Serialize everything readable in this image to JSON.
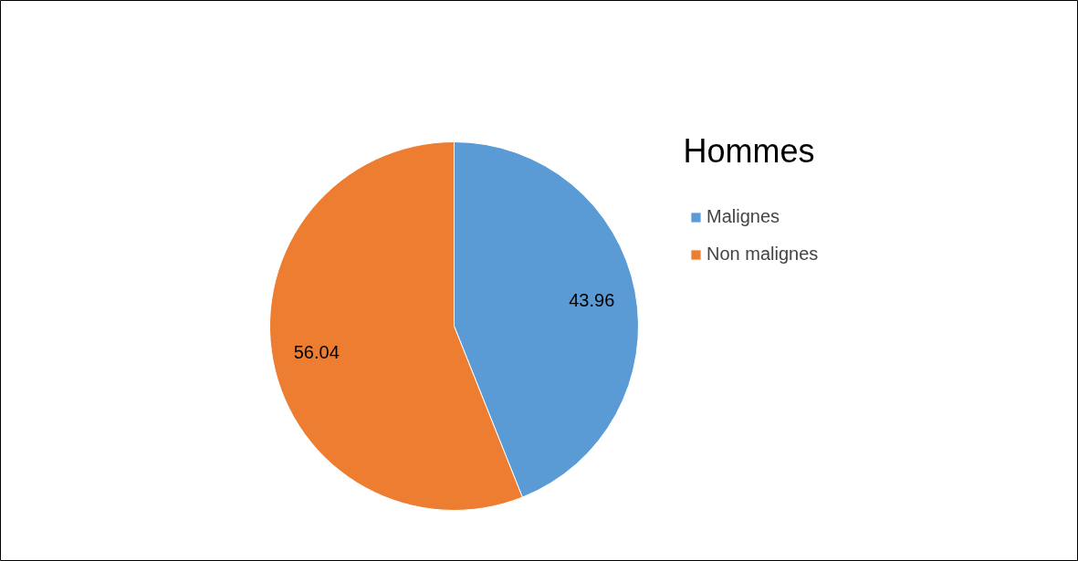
{
  "chart_data": {
    "type": "pie",
    "title": "Hommes",
    "categories": [
      "Malignes",
      "Non malignes"
    ],
    "values": [
      43.96,
      56.04
    ],
    "colors": [
      "#5b9bd5",
      "#ed7d31"
    ],
    "data_labels": true,
    "legend": "right"
  }
}
